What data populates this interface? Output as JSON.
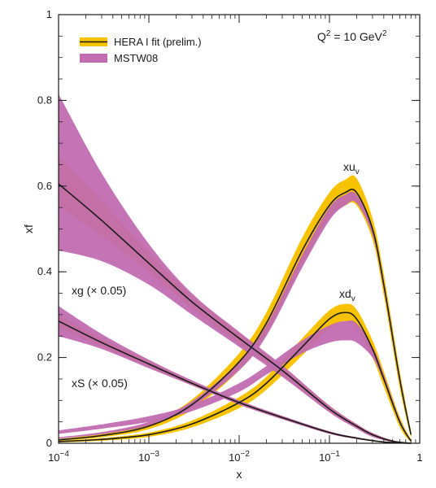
{
  "chart_data": {
    "type": "line",
    "xlabel": "x",
    "ylabel": "xf",
    "x_scale": "log",
    "xlim": [
      0.0001,
      1
    ],
    "ylim": [
      0,
      1
    ],
    "x_ticks": [
      {
        "value": 0.0001,
        "base": "10",
        "exp": "−4"
      },
      {
        "value": 0.001,
        "base": "10",
        "exp": "−3"
      },
      {
        "value": 0.01,
        "base": "10",
        "exp": "−2"
      },
      {
        "value": 0.1,
        "base": "10",
        "exp": "−1"
      },
      {
        "value": 1,
        "base": "1",
        "exp": ""
      }
    ],
    "y_ticks": [
      {
        "value": 0,
        "label": "0"
      },
      {
        "value": 0.2,
        "label": "0.2"
      },
      {
        "value": 0.4,
        "label": "0.4"
      },
      {
        "value": 0.6,
        "label": "0.6"
      },
      {
        "value": 0.8,
        "label": "0.8"
      },
      {
        "value": 1,
        "label": "1"
      }
    ],
    "annotation": {
      "base": "Q",
      "sup1": "2",
      "mid": " = 10 GeV",
      "sup2": "2"
    },
    "legend_position": "top-left",
    "legend": [
      {
        "label": "HERA I fit (prelim.)",
        "color": "#f7c300",
        "line_color": "#1a1a1a"
      },
      {
        "label": "MSTW08",
        "color": "#c16bb0"
      }
    ],
    "curve_labels": [
      {
        "id": "xuv",
        "text": "xu",
        "sub": "v"
      },
      {
        "id": "xdv",
        "text": "xd",
        "sub": "v"
      },
      {
        "id": "xg",
        "text": "xg (× 0.05)"
      },
      {
        "id": "xs",
        "text": "xS (× 0.05)"
      }
    ],
    "colors": {
      "hera": "#f7c300",
      "mstw": "#c16bb0",
      "central": "#1a1a1a"
    },
    "series": [
      {
        "id": "xuv",
        "x": [
          0.0001,
          0.0003,
          0.001,
          0.003,
          0.01,
          0.02,
          0.05,
          0.1,
          0.15,
          0.2,
          0.3,
          0.4,
          0.6,
          0.8
        ],
        "central": [
          0.008,
          0.018,
          0.04,
          0.09,
          0.19,
          0.28,
          0.45,
          0.555,
          0.585,
          0.585,
          0.5,
          0.37,
          0.15,
          0.02
        ],
        "hera_lo": [
          0.006,
          0.014,
          0.033,
          0.078,
          0.17,
          0.255,
          0.42,
          0.525,
          0.555,
          0.555,
          0.475,
          0.345,
          0.13,
          0.012
        ],
        "hera_hi": [
          0.01,
          0.022,
          0.047,
          0.102,
          0.21,
          0.305,
          0.48,
          0.585,
          0.615,
          0.618,
          0.525,
          0.395,
          0.17,
          0.028
        ],
        "mstw_lo": [
          0.011,
          0.021,
          0.042,
          0.085,
          0.17,
          0.25,
          0.41,
          0.52,
          0.555,
          0.56,
          0.485,
          0.36,
          0.145,
          0.018
        ],
        "mstw_hi": [
          0.014,
          0.026,
          0.05,
          0.098,
          0.19,
          0.275,
          0.44,
          0.55,
          0.58,
          0.58,
          0.5,
          0.372,
          0.152,
          0.022
        ]
      },
      {
        "id": "xdv",
        "x": [
          0.0001,
          0.0003,
          0.001,
          0.003,
          0.01,
          0.02,
          0.05,
          0.1,
          0.15,
          0.2,
          0.3,
          0.4,
          0.6,
          0.8
        ],
        "central": [
          0.004,
          0.009,
          0.02,
          0.045,
          0.095,
          0.14,
          0.225,
          0.29,
          0.305,
          0.29,
          0.22,
          0.15,
          0.05,
          0.005
        ],
        "hera_lo": [
          0.002,
          0.006,
          0.015,
          0.037,
          0.082,
          0.125,
          0.205,
          0.268,
          0.285,
          0.268,
          0.2,
          0.132,
          0.038,
          0.002
        ],
        "hera_hi": [
          0.006,
          0.012,
          0.025,
          0.053,
          0.108,
          0.155,
          0.245,
          0.31,
          0.325,
          0.312,
          0.24,
          0.168,
          0.062,
          0.009
        ],
        "mstw_lo": [
          0.022,
          0.034,
          0.05,
          0.075,
          0.12,
          0.16,
          0.21,
          0.235,
          0.24,
          0.235,
          0.2,
          0.145,
          0.048,
          0.004
        ],
        "mstw_hi": [
          0.03,
          0.044,
          0.063,
          0.09,
          0.14,
          0.18,
          0.24,
          0.275,
          0.285,
          0.28,
          0.225,
          0.16,
          0.056,
          0.007
        ]
      },
      {
        "id": "xg",
        "x": [
          0.0001,
          0.0003,
          0.001,
          0.003,
          0.01,
          0.03,
          0.1,
          0.2,
          0.3,
          0.5,
          0.8
        ],
        "central": [
          0.605,
          0.52,
          0.42,
          0.33,
          0.245,
          0.17,
          0.08,
          0.04,
          0.02,
          0.005,
          0.0
        ],
        "hera_lo": [
          0.555,
          0.485,
          0.4,
          0.315,
          0.232,
          0.16,
          0.074,
          0.035,
          0.016,
          0.003,
          0.0
        ],
        "hera_hi": [
          0.67,
          0.565,
          0.445,
          0.345,
          0.258,
          0.18,
          0.088,
          0.045,
          0.024,
          0.007,
          0.0
        ],
        "mstw_lo": [
          0.45,
          0.425,
          0.37,
          0.3,
          0.225,
          0.155,
          0.072,
          0.034,
          0.015,
          0.003,
          0.0
        ],
        "mstw_hi": [
          0.815,
          0.63,
          0.465,
          0.35,
          0.26,
          0.182,
          0.088,
          0.045,
          0.024,
          0.007,
          0.0
        ]
      },
      {
        "id": "xs",
        "x": [
          0.0001,
          0.0003,
          0.001,
          0.003,
          0.01,
          0.03,
          0.1,
          0.2,
          0.4,
          0.8
        ],
        "central": [
          0.285,
          0.235,
          0.185,
          0.14,
          0.095,
          0.06,
          0.025,
          0.012,
          0.003,
          0.0
        ],
        "hera_lo": [
          0.27,
          0.225,
          0.178,
          0.135,
          0.092,
          0.057,
          0.023,
          0.01,
          0.002,
          0.0
        ],
        "hera_hi": [
          0.3,
          0.245,
          0.192,
          0.145,
          0.099,
          0.063,
          0.027,
          0.014,
          0.004,
          0.0
        ],
        "mstw_lo": [
          0.25,
          0.22,
          0.175,
          0.135,
          0.09,
          0.056,
          0.022,
          0.01,
          0.002,
          0.0
        ],
        "mstw_hi": [
          0.32,
          0.255,
          0.195,
          0.147,
          0.1,
          0.064,
          0.028,
          0.014,
          0.004,
          0.0
        ]
      }
    ]
  }
}
